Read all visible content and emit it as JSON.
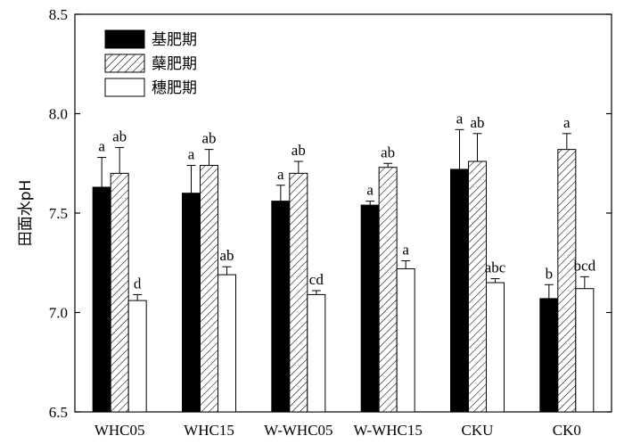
{
  "chart_data": {
    "type": "bar",
    "title": "",
    "xlabel": "",
    "ylabel": "田面水pH",
    "ylim": [
      6.5,
      8.5
    ],
    "yticks": [
      "6.5",
      "7.0",
      "7.5",
      "8.0",
      "8.5"
    ],
    "grid": false,
    "legend_position": "top-left",
    "categories": [
      "WHC05",
      "WHC15",
      "W-WHC05",
      "W-WHC15",
      "CKU",
      "CK0"
    ],
    "series": [
      {
        "name": "基肥期",
        "fill": "#000000",
        "pattern": "solid",
        "values": [
          7.63,
          7.6,
          7.56,
          7.54,
          7.72,
          7.07
        ],
        "errors": [
          0.15,
          0.14,
          0.08,
          0.02,
          0.2,
          0.07
        ],
        "labels": [
          "a",
          "a",
          "a",
          "a",
          "a",
          "b"
        ]
      },
      {
        "name": "蘖肥期",
        "fill": "#ffffff",
        "pattern": "hatch",
        "values": [
          7.7,
          7.74,
          7.7,
          7.73,
          7.76,
          7.82
        ],
        "errors": [
          0.13,
          0.08,
          0.06,
          0.02,
          0.14,
          0.08
        ],
        "labels": [
          "ab",
          "ab",
          "ab",
          "ab",
          "ab",
          "a"
        ]
      },
      {
        "name": "穗肥期",
        "fill": "#ffffff",
        "pattern": "solid",
        "values": [
          7.06,
          7.19,
          7.09,
          7.22,
          7.15,
          7.12
        ],
        "errors": [
          0.03,
          0.04,
          0.02,
          0.04,
          0.02,
          0.06
        ],
        "labels": [
          "d",
          "ab",
          "cd",
          "a",
          "abc",
          "bcd"
        ]
      }
    ]
  }
}
